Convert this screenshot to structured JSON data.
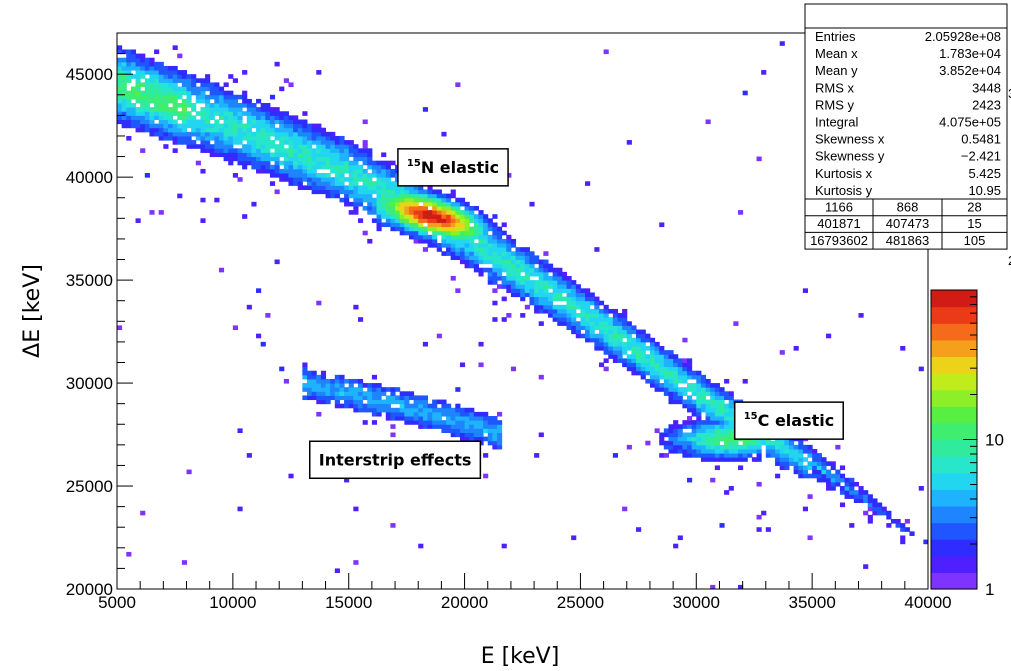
{
  "chart_data": {
    "type": "heatmap",
    "xlabel": "E [keV]",
    "ylabel": "ΔE [keV]",
    "xlim": [
      5000,
      40000
    ],
    "ylim": [
      20000,
      47000
    ],
    "x_ticks": [
      "5000",
      "10000",
      "15000",
      "20000",
      "25000",
      "30000",
      "35000",
      "40000"
    ],
    "y_ticks": [
      "20000",
      "25000",
      "30000",
      "35000",
      "40000",
      "45000"
    ],
    "colorbar": {
      "scale": "log",
      "range": [
        1,
        100
      ],
      "labels": [
        "1",
        "10"
      ],
      "colors": [
        "#7e33ff",
        "#4e1fff",
        "#2f2cff",
        "#1f56ff",
        "#1f85ff",
        "#1fb2ff",
        "#22d6f0",
        "#27e6c9",
        "#31eb9d",
        "#3fed6f",
        "#58ef45",
        "#8cef27",
        "#c1ec1c",
        "#ecd31a",
        "#f59f1c",
        "#f56b1c",
        "#ea3a18",
        "#d11b15"
      ]
    },
    "annotations": [
      {
        "sup": "15",
        "text": "N elastic",
        "x": 19500,
        "y": 40500
      },
      {
        "sup": "15",
        "text": "C elastic",
        "x": 34000,
        "y": 28200
      },
      {
        "sup": "",
        "text": "Interstrip effects",
        "x": 17000,
        "y": 26300
      }
    ],
    "bands": [
      {
        "name": "15N elastic",
        "x": [
          5000,
          10000,
          15000,
          20000,
          25000,
          30000,
          35000,
          40000
        ],
        "y": [
          44500,
          42500,
          40200,
          37200,
          33500,
          29500,
          26000,
          22000
        ],
        "peak_at": [
          19000,
          38200
        ]
      },
      {
        "name": "Interstrip effects",
        "x": [
          13000,
          17000,
          21500
        ],
        "y": [
          30000,
          29000,
          27600
        ]
      }
    ],
    "stats": {
      "rows": [
        {
          "label": "Entries",
          "value": "2.05928e+08"
        },
        {
          "label": "Mean x",
          "value": "1.783e+04"
        },
        {
          "label": "Mean y",
          "value": "3.852e+04"
        },
        {
          "label": "RMS x",
          "value": "3448"
        },
        {
          "label": "RMS y",
          "value": "2423"
        },
        {
          "label": "Integral",
          "value": "4.075e+05"
        },
        {
          "label": "Skewness x",
          "value": "0.5481"
        },
        {
          "label": "Skewness y",
          "value": "−2.421"
        },
        {
          "label": "Kurtosis x",
          "value": "5.425"
        },
        {
          "label": "Kurtosis y",
          "value": "10.95"
        }
      ],
      "grid": [
        [
          "1166",
          "868",
          "28"
        ],
        [
          "401871",
          "407473",
          "15"
        ],
        [
          "16793602",
          "481863",
          "105"
        ]
      ],
      "clipped_digits": [
        "3",
        "2"
      ]
    }
  }
}
